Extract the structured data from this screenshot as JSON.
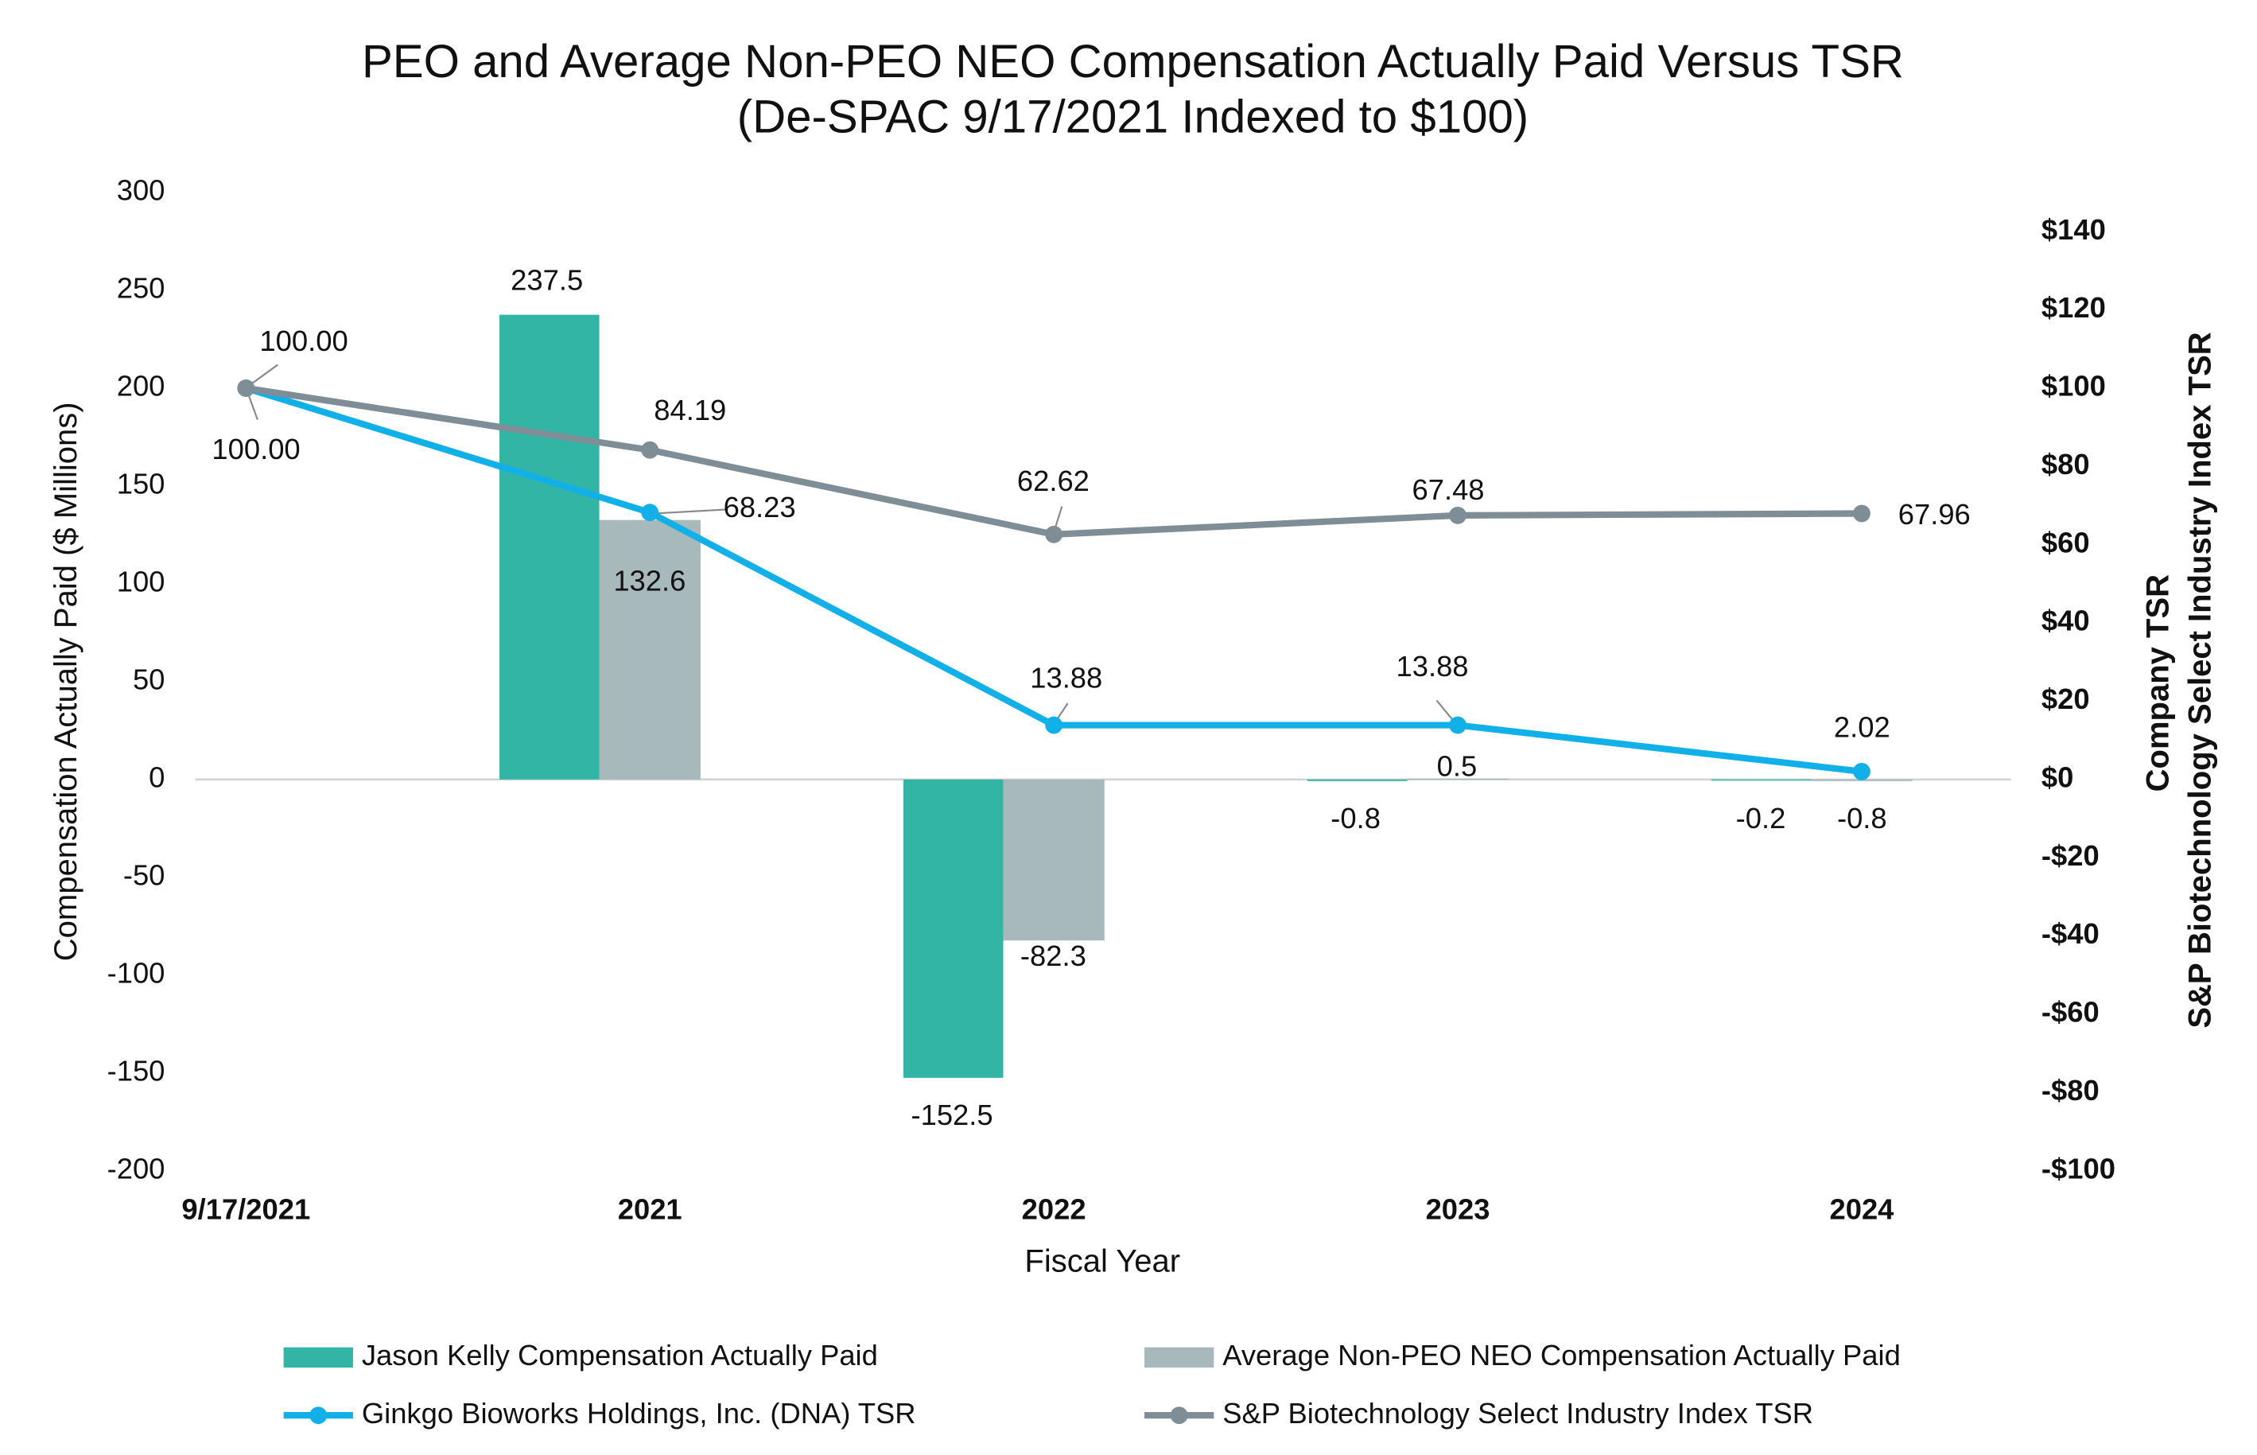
{
  "chart_data": {
    "type": "bar",
    "title": "PEO and Average Non-PEO NEO Compensation Actually Paid Versus TSR",
    "subtitle": "(De-SPAC 9/17/2021 Indexed to $100)",
    "xlabel": "Fiscal Year",
    "ylabel": "Compensation Actually Paid ($ Millions)",
    "y2label": [
      "Company TSR",
      "S&P Biotechnology Select Industry Index TSR"
    ],
    "categories": [
      "9/17/2021",
      "2021",
      "2022",
      "2023",
      "2024"
    ],
    "ylim": [
      -200,
      300
    ],
    "yticks": [
      -200,
      -150,
      -100,
      -50,
      0,
      50,
      100,
      150,
      200,
      250,
      300
    ],
    "y2lim": [
      -100,
      150
    ],
    "y2ticks": [
      {
        "value": -100,
        "label": "-$100"
      },
      {
        "value": -80,
        "label": "-$80"
      },
      {
        "value": -60,
        "label": "-$60"
      },
      {
        "value": -40,
        "label": "-$40"
      },
      {
        "value": -20,
        "label": "-$20"
      },
      {
        "value": 0,
        "label": "$0"
      },
      {
        "value": 20,
        "label": "$20"
      },
      {
        "value": 40,
        "label": "$40"
      },
      {
        "value": 60,
        "label": "$60"
      },
      {
        "value": 80,
        "label": "$80"
      },
      {
        "value": 100,
        "label": "$100"
      },
      {
        "value": 120,
        "label": "$120"
      },
      {
        "value": 140,
        "label": "$140"
      }
    ],
    "grid": false,
    "legend": "bottom",
    "series": [
      {
        "name": "Jason Kelly Compensation Actually Paid",
        "type": "bar",
        "color": "#33b5a5",
        "values": [
          null,
          237.5,
          -152.5,
          -0.8,
          -0.2
        ]
      },
      {
        "name": "Average Non-PEO NEO Compensation Actually Paid",
        "type": "bar",
        "color": "#a7b9ba",
        "values": [
          null,
          132.6,
          -82.3,
          0.5,
          -0.8
        ]
      },
      {
        "name": "Ginkgo Bioworks Holdings, Inc. (DNA) TSR",
        "type": "line",
        "axis": "y2",
        "color": "#12b0e8",
        "values": [
          100,
          68.23,
          13.88,
          13.88,
          2.02
        ],
        "value_labels": [
          "100.00",
          "68.23",
          "13.88",
          "13.88",
          "2.02"
        ]
      },
      {
        "name": "S&P Biotechnology Select Industry Index TSR",
        "type": "line",
        "axis": "y2",
        "color": "#7f8e96",
        "values": [
          100,
          84.19,
          62.62,
          67.48,
          67.96
        ],
        "value_labels": [
          "100.00",
          "84.19",
          "62.62",
          "67.48",
          "67.96"
        ]
      }
    ]
  }
}
